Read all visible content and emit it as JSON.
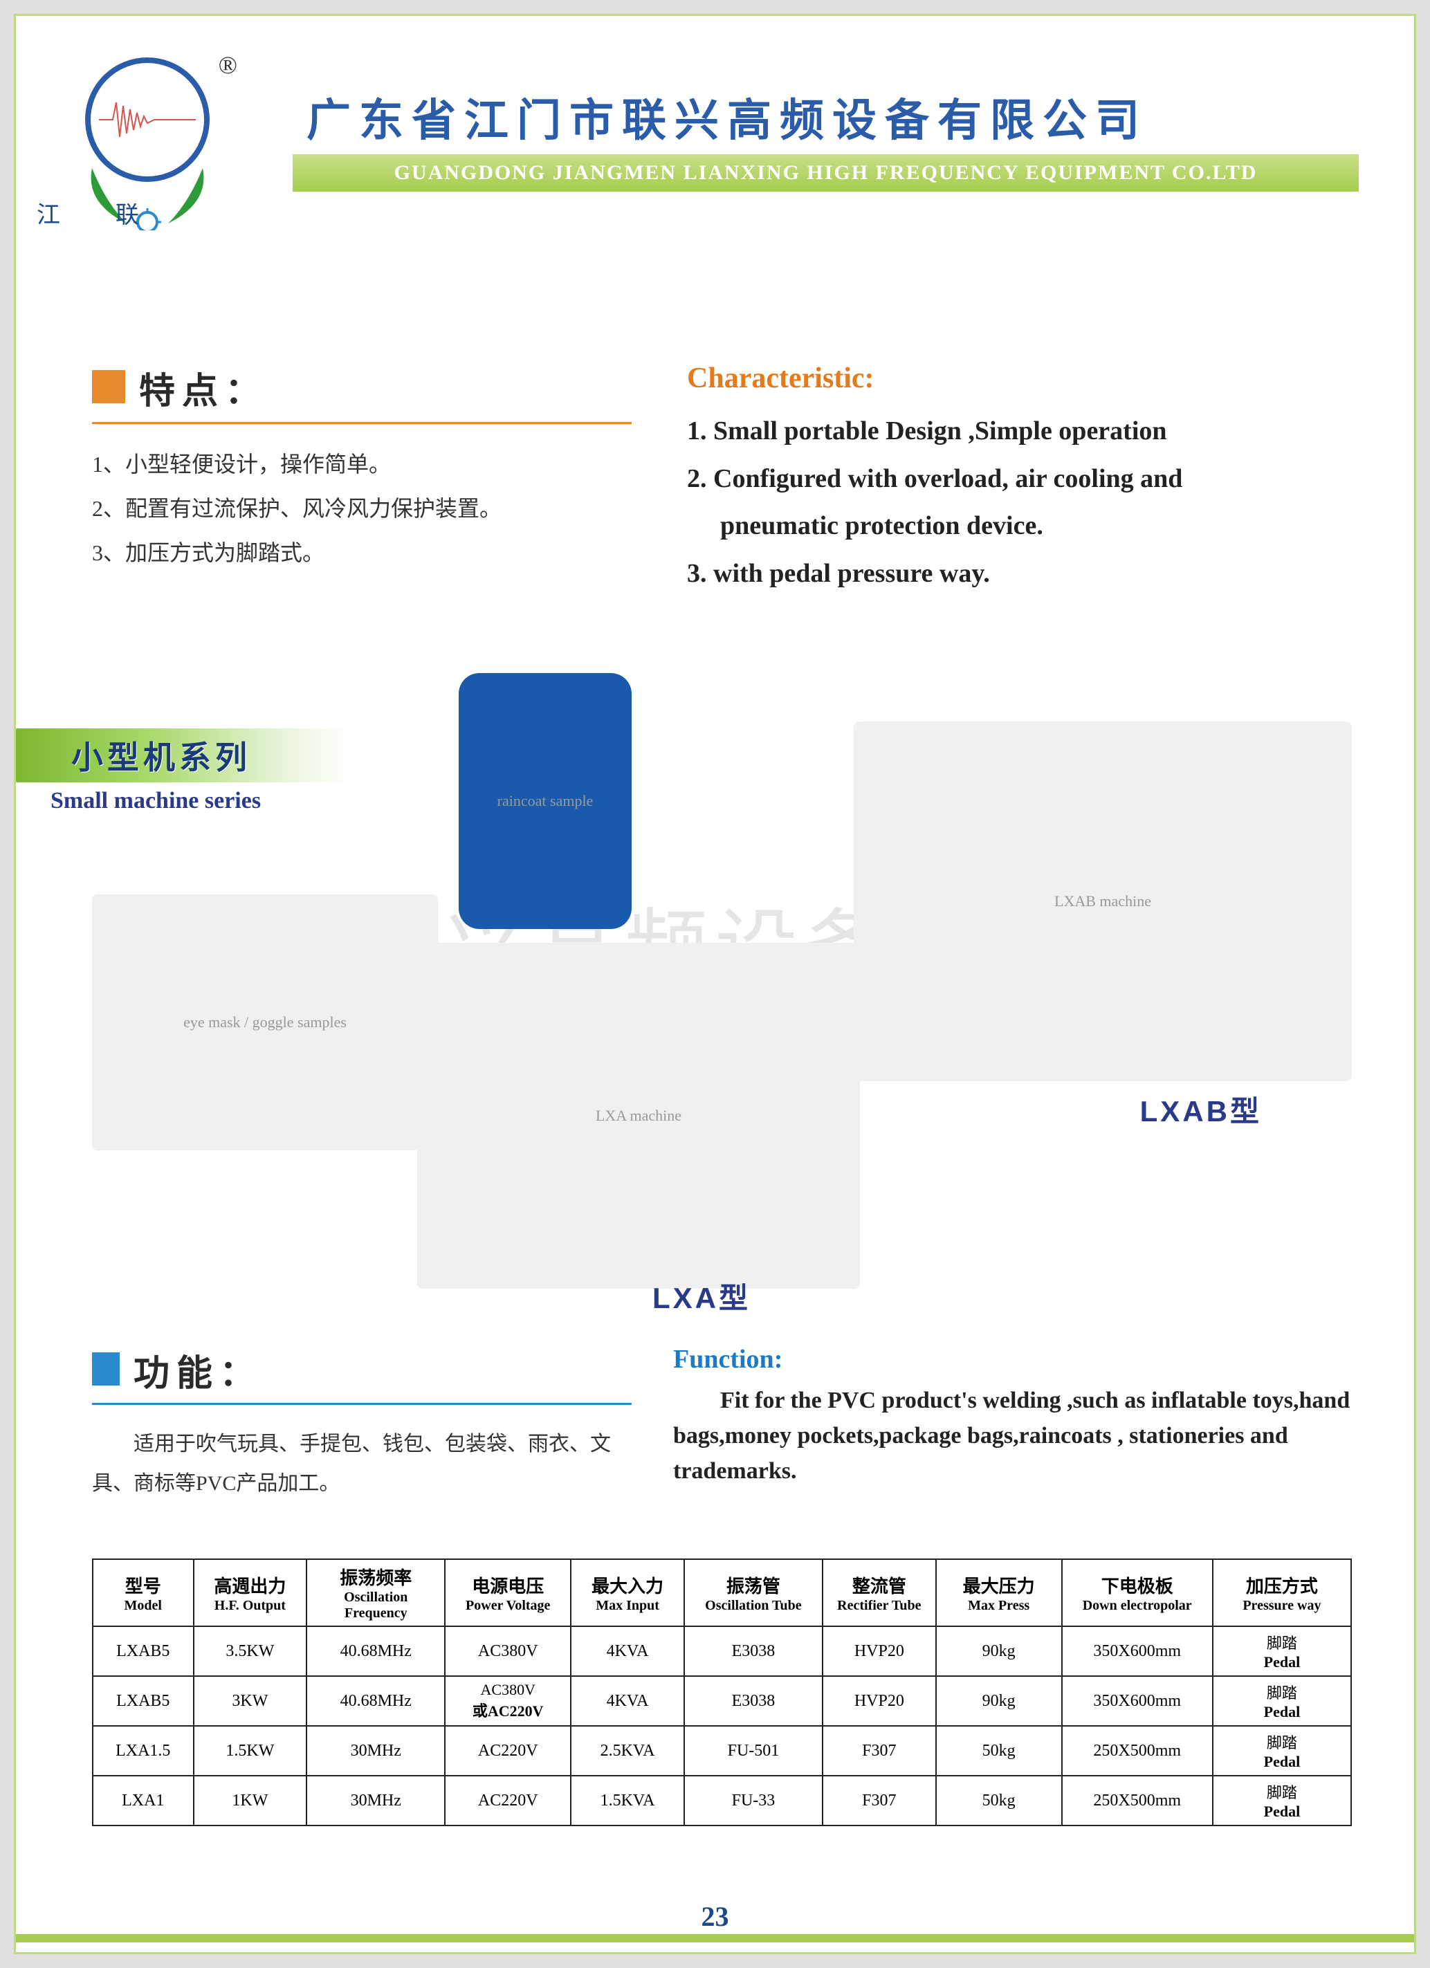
{
  "header": {
    "company_cn": "广东省江门市联兴高频设备有限公司",
    "company_en": "GUANGDONG JIANGMEN LIANXING HIGH FREQUENCY  EQUIPMENT CO.LTD",
    "brand_short": "江联",
    "reg_mark": "®"
  },
  "colors": {
    "accent_blue": "#2a5caa",
    "accent_orange": "#e78a2e",
    "accent_cyan": "#2a8acc",
    "green_bar_start": "#7cb82f",
    "green_bar_end": "#a5cc4e",
    "page_bg": "#ffffff"
  },
  "characteristic": {
    "title_cn": "特点：",
    "items_cn": [
      "1、小型轻便设计，操作简单。",
      "2、配置有过流保护、风冷风力保护装置。",
      "3、加压方式为脚踏式。"
    ],
    "title_en": "Characteristic:",
    "items_en": [
      "1. Small portable Design ,Simple operation",
      "2. Configured with overload, air cooling and",
      "    pneumatic protection device.",
      "3. with pedal pressure way."
    ]
  },
  "series": {
    "cn": "小型机系列",
    "en": "Small machine series"
  },
  "models": {
    "lxab_label": "LXAB型",
    "lxa_label": "LXA型"
  },
  "function": {
    "title_cn": "功能：",
    "text_cn": "适用于吹气玩具、手提包、钱包、包装袋、雨衣、文具、商标等PVC产品加工。",
    "title_en": "Function:",
    "text_en": "Fit for the PVC product's welding ,such as inflatable toys,hand bags,money pockets,package bags,raincoats , stationeries and trademarks."
  },
  "table": {
    "columns": [
      {
        "cn": "型号",
        "en": "Model"
      },
      {
        "cn": "高週出力",
        "en": "H.F. Output"
      },
      {
        "cn": "振荡频率",
        "en": "Oscillation Frequency"
      },
      {
        "cn": "电源电压",
        "en": "Power Voltage"
      },
      {
        "cn": "最大入力",
        "en": "Max Input"
      },
      {
        "cn": "振荡管",
        "en": "Oscillation Tube"
      },
      {
        "cn": "整流管",
        "en": "Rectifier Tube"
      },
      {
        "cn": "最大压力",
        "en": "Max Press"
      },
      {
        "cn": "下电极板",
        "en": "Down electropolar"
      },
      {
        "cn": "加压方式",
        "en": "Pressure way"
      }
    ],
    "rows": [
      [
        "LXAB5",
        "3.5KW",
        "40.68MHz",
        "AC380V",
        "4KVA",
        "E3038",
        "HVP20",
        "90kg",
        "350X600mm",
        {
          "cn": "脚踏",
          "en": "Pedal"
        }
      ],
      [
        "LXAB5",
        "3KW",
        "40.68MHz",
        {
          "cn": "AC380V",
          "en": "或AC220V"
        },
        "4KVA",
        "E3038",
        "HVP20",
        "90kg",
        "350X600mm",
        {
          "cn": "脚踏",
          "en": "Pedal"
        }
      ],
      [
        "LXA1.5",
        "1.5KW",
        "30MHz",
        "AC220V",
        "2.5KVA",
        "FU-501",
        "F307",
        "50kg",
        "250X500mm",
        {
          "cn": "脚踏",
          "en": "Pedal"
        }
      ],
      [
        "LXA1",
        "1KW",
        "30MHz",
        "AC220V",
        "1.5KVA",
        "FU-33",
        "F307",
        "50kg",
        "250X500mm",
        {
          "cn": "脚踏",
          "en": "Pedal"
        }
      ]
    ],
    "col_widths_pct": [
      8,
      9,
      11,
      10,
      9,
      11,
      9,
      10,
      12,
      11
    ]
  },
  "watermark": "江门联兴高频设备有限公司",
  "page_number": "23",
  "image_placeholders": {
    "raincoat": "raincoat sample",
    "goggles": "eye mask / goggle samples",
    "lxab": "LXAB machine",
    "lxa": "LXA machine"
  }
}
